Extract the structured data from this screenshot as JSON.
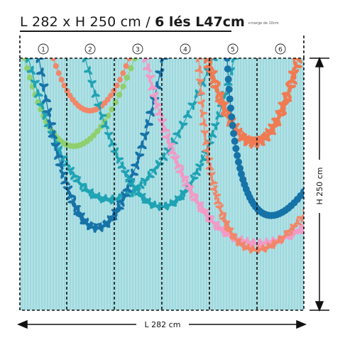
{
  "header": {
    "dimensions_text": "L 282 x H 250 cm / ",
    "panels_text": "6 lés L47cm",
    "margin_note": "+marge de 10cm"
  },
  "panels": [
    "1",
    "2",
    "3",
    "4",
    "5",
    "6"
  ],
  "width_label": "L 282 cm",
  "height_label": "H 250 cm",
  "colors": {
    "background": "#9fd9de",
    "stripe": "#b2e2e6",
    "garland_green": "#8fcf6d",
    "garland_salmon": "#f28668",
    "garland_teal": "#1fa3b4",
    "garland_blue": "#1673a8",
    "garland_pink": "#f29ac6",
    "garland_orange": "#f07a52"
  }
}
